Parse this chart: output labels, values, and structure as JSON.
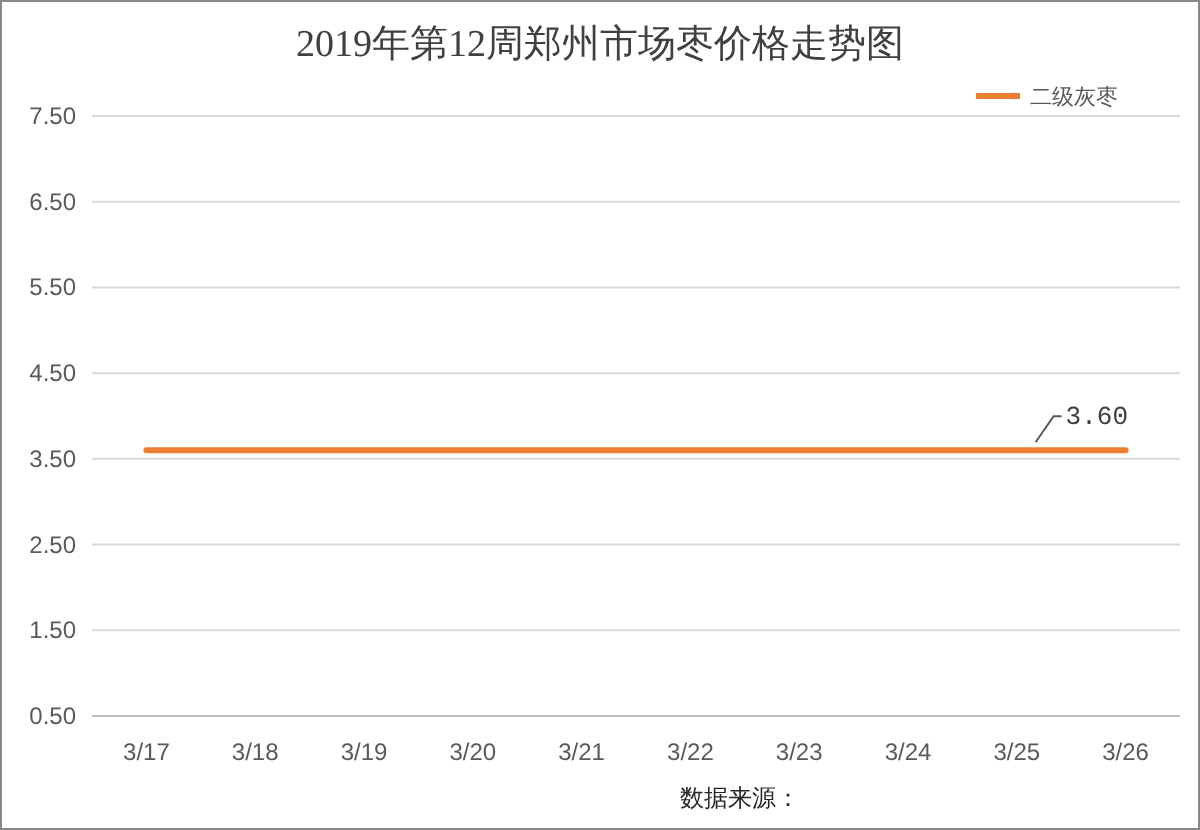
{
  "chart_data": {
    "type": "line",
    "title": "2019年第12周郑州市场枣价格走势图",
    "categories": [
      "3/17",
      "3/18",
      "3/19",
      "3/20",
      "3/21",
      "3/22",
      "3/23",
      "3/24",
      "3/25",
      "3/26"
    ],
    "series": [
      {
        "name": "二级灰枣",
        "color": "#ed7d31",
        "values": [
          3.6,
          3.6,
          3.6,
          3.6,
          3.6,
          3.6,
          3.6,
          3.6,
          3.6,
          3.6
        ],
        "value_labels": [
          null,
          null,
          null,
          null,
          null,
          null,
          null,
          null,
          null,
          "3.60"
        ]
      }
    ],
    "ylim": [
      0.5,
      7.5
    ],
    "yticks": [
      {
        "value": 0.5,
        "label": "0.50"
      },
      {
        "value": 1.5,
        "label": "1.50"
      },
      {
        "value": 2.5,
        "label": "2.50"
      },
      {
        "value": 3.5,
        "label": "3.50"
      },
      {
        "value": 4.5,
        "label": "4.50"
      },
      {
        "value": 5.5,
        "label": "5.50"
      },
      {
        "value": 6.5,
        "label": "6.50"
      },
      {
        "value": 7.5,
        "label": "7.50"
      }
    ],
    "grid": "y",
    "legend": "top right",
    "marker": "none",
    "annotations": [
      "数据来源："
    ]
  }
}
